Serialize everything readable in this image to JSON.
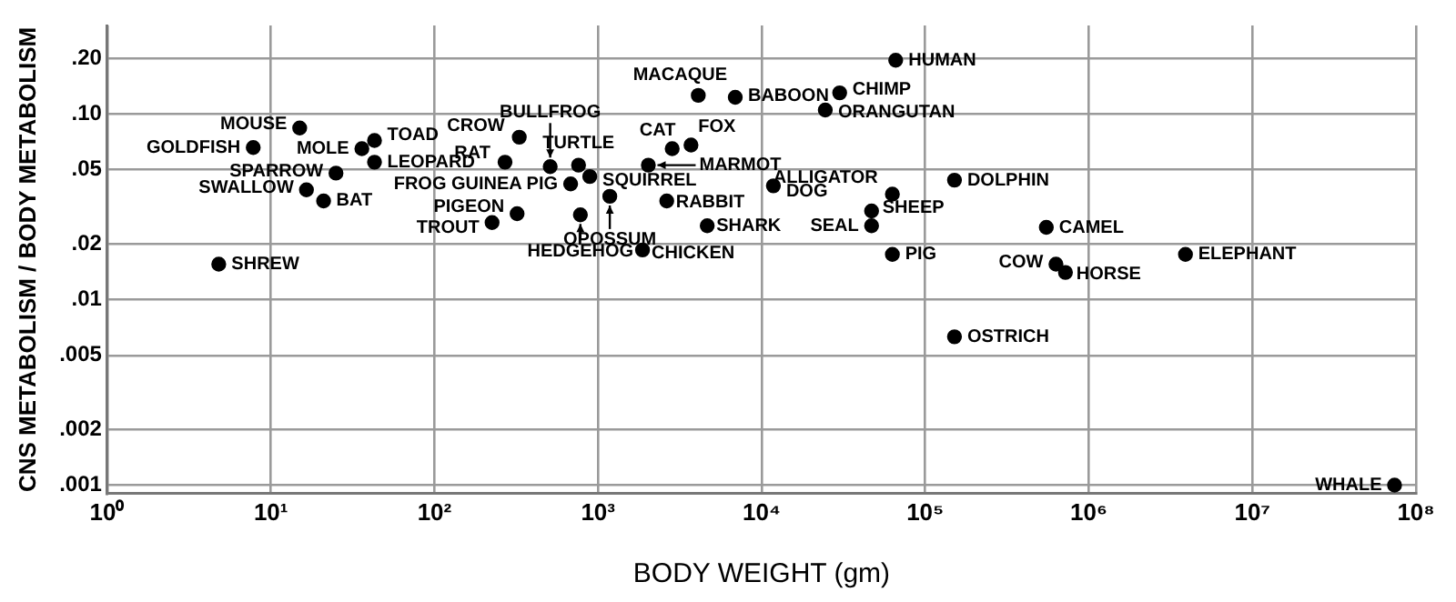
{
  "chart_data": {
    "type": "scatter",
    "xlabel": "BODY WEIGHT (gm)",
    "ylabel": "CNS METABOLISM / BODY METABOLISM",
    "log": "xy",
    "grid": true,
    "legend": false,
    "marker": "circle",
    "xlim": [
      1,
      100000000
    ],
    "ylim": [
      0.0009,
      0.3
    ],
    "xticks": [
      {
        "value": 1,
        "label": "10⁰"
      },
      {
        "value": 10,
        "label": "10¹"
      },
      {
        "value": 100,
        "label": "10²"
      },
      {
        "value": 1000,
        "label": "10³"
      },
      {
        "value": 10000,
        "label": "10⁴"
      },
      {
        "value": 100000,
        "label": "10⁵"
      },
      {
        "value": 1000000,
        "label": "10⁶"
      },
      {
        "value": 10000000,
        "label": "10⁷"
      },
      {
        "value": 100000000,
        "label": "10⁸"
      }
    ],
    "yticks": [
      {
        "value": 0.001,
        "label": ".001"
      },
      {
        "value": 0.002,
        "label": ".002"
      },
      {
        "value": 0.005,
        "label": ".005"
      },
      {
        "value": 0.01,
        "label": ".01"
      },
      {
        "value": 0.02,
        "label": ".02"
      },
      {
        "value": 0.05,
        "label": ".05"
      },
      {
        "value": 0.1,
        "label": ".10"
      },
      {
        "value": 0.2,
        "label": ".20"
      }
    ],
    "series": [
      {
        "color": "#000000",
        "x": [
          15,
          7.8,
          36,
          43,
          43,
          25,
          16.5,
          21,
          4.8,
          330,
          270,
          510,
          680,
          760,
          890,
          1180,
          320,
          225,
          780,
          4100,
          6900,
          30000,
          24500,
          2840,
          3700,
          2030,
          2630,
          11800,
          4650,
          1870,
          66000,
          63000,
          47000,
          47000,
          63000,
          151000,
          550000,
          630000,
          720000,
          3900000,
          151000,
          74000000
        ],
        "values": [
          0.084,
          0.066,
          0.065,
          0.072,
          0.055,
          0.048,
          0.039,
          0.034,
          0.0155,
          0.075,
          0.055,
          0.052,
          0.042,
          0.053,
          0.046,
          0.036,
          0.029,
          0.026,
          0.0286,
          0.126,
          0.123,
          0.13,
          0.105,
          0.065,
          0.068,
          0.053,
          0.034,
          0.041,
          0.025,
          0.0185,
          0.195,
          0.037,
          0.03,
          0.025,
          0.0175,
          0.044,
          0.0245,
          0.0155,
          0.014,
          0.0175,
          0.0063,
          0.001
        ],
        "value_labels": [
          "MOUSE",
          "GOLDFISH",
          "MOLE",
          "TOAD",
          "LEOPARD",
          "SPARROW",
          "SWALLOW",
          "BAT",
          "SHREW",
          "CROW",
          "RAT",
          "BULLFROG",
          "FROG GUINEA PIG",
          "TURTLE",
          "SQUIRREL",
          "OPOSSUM",
          "PIGEON",
          "TROUT",
          "HEDGEHOG",
          "MACAQUE",
          "BABOON",
          "CHIMP",
          "ORANGUTAN",
          "CAT",
          "FOX",
          "MARMOT",
          "RABBIT",
          "DOG",
          "SHARK",
          "CHICKEN",
          "HUMAN",
          "ALLIGATOR",
          "SHEEP",
          "SEAL",
          "PIG",
          "DOLPHIN",
          "CAMEL",
          "COW",
          "HORSE",
          "ELEPHANT",
          "OSTRICH",
          "WHALE"
        ]
      }
    ]
  }
}
